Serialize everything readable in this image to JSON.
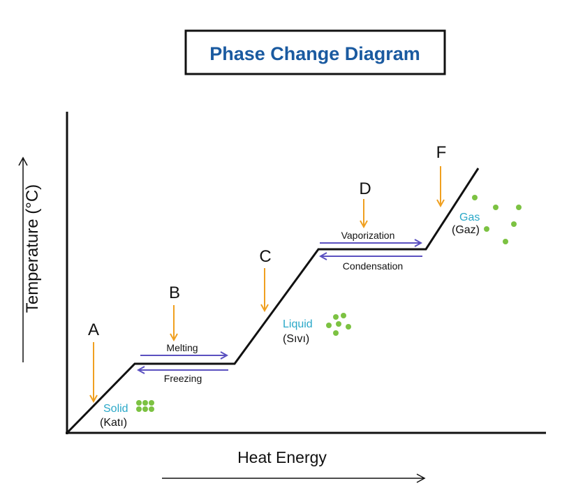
{
  "title": "Phase Change Diagram",
  "y_axis_label": "Temperature (°C)",
  "x_axis_label": "Heat Energy",
  "points": {
    "a": "A",
    "b": "B",
    "c": "C",
    "d": "D",
    "f": "F"
  },
  "processes": {
    "melting": "Melting",
    "freezing": "Freezing",
    "vaporization": "Vaporization",
    "condensation": "Condensation"
  },
  "phases": {
    "solid": {
      "label": "Solid",
      "translation": "(Katı)"
    },
    "liquid": {
      "label": "Liquid",
      "translation": "(Sıvı)"
    },
    "gas": {
      "label": "Gas",
      "translation": "(Gaz)"
    }
  },
  "colors": {
    "title": "#1a5aa0",
    "heat_arrow": "#f0a020",
    "process_arrow": "#5a50c0",
    "phase_label": "#2aa8c8",
    "particle": "#7cc242"
  }
}
